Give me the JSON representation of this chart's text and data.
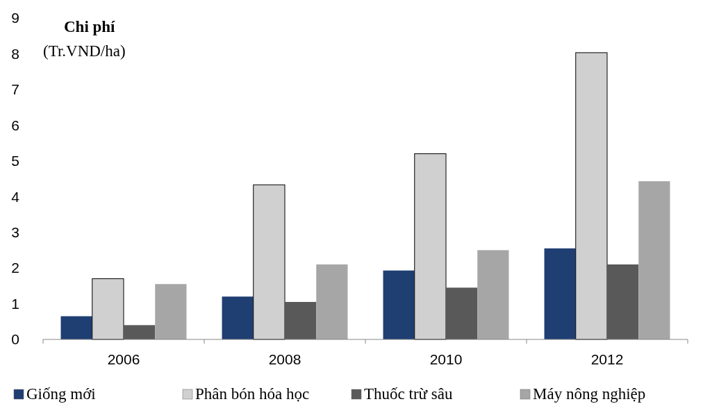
{
  "chart_data": {
    "type": "bar",
    "title": "Chi phí",
    "ylabel": "(Tr.VND/ha)",
    "categories": [
      "2006",
      "2008",
      "2010",
      "2012"
    ],
    "series": [
      {
        "name": "Giống mới",
        "color": "#1f3f73",
        "values": [
          0.65,
          1.2,
          1.93,
          2.55
        ]
      },
      {
        "name": "Phân bón hóa học",
        "color": "#d0d0d0",
        "values": [
          1.7,
          4.33,
          5.2,
          8.03
        ]
      },
      {
        "name": "Thuốc trừ sâu",
        "color": "#595959",
        "values": [
          0.4,
          1.05,
          1.45,
          2.1
        ]
      },
      {
        "name": "Máy nông nghiệp",
        "color": "#a6a6a6",
        "values": [
          1.55,
          2.1,
          2.5,
          4.43
        ]
      }
    ],
    "ylim": [
      0,
      9
    ],
    "yticks": [
      0,
      1,
      2,
      3,
      4,
      5,
      6,
      7,
      8,
      9
    ],
    "grid": false,
    "legend": "bottom"
  }
}
